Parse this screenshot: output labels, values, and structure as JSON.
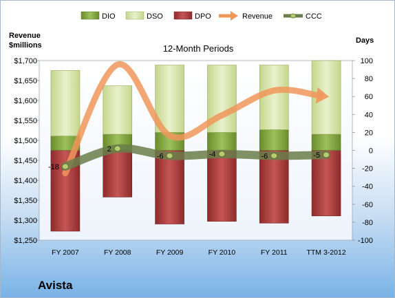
{
  "chart_data": {
    "type": "bar",
    "subtitle": "12-Month Periods",
    "company": "Avista",
    "left_axis": {
      "title_line1": "Revenue",
      "title_line2": "$millions",
      "range": [
        1250,
        1700
      ],
      "ticks": [
        "$1,250",
        "$1,300",
        "$1,350",
        "$1,400",
        "$1,450",
        "$1,500",
        "$1,550",
        "$1,600",
        "$1,650",
        "$1,700"
      ],
      "tick_values": [
        1250,
        1300,
        1350,
        1400,
        1450,
        1500,
        1550,
        1600,
        1650,
        1700
      ]
    },
    "right_axis": {
      "title": "Days",
      "range": [
        -100,
        100
      ],
      "ticks": [
        "100",
        "80",
        "60",
        "40",
        "20",
        "0",
        "-20",
        "-40",
        "-60",
        "-80",
        "-100"
      ],
      "tick_values": [
        100,
        80,
        60,
        40,
        20,
        0,
        -20,
        -40,
        -60,
        -80,
        -100
      ]
    },
    "categories": [
      "FY 2007",
      "FY 2008",
      "FY 2009",
      "FY 2010",
      "FY 2011",
      "TTM 3-2012"
    ],
    "series": [
      {
        "name": "DIO",
        "axis": "right",
        "color": "#7a9c35",
        "values": [
          16,
          18,
          20,
          20,
          23,
          18
        ]
      },
      {
        "name": "DSO",
        "axis": "right",
        "color": "#d7e4a8",
        "values": [
          73,
          54,
          75,
          75,
          72,
          82
        ]
      },
      {
        "name": "DPO",
        "axis": "right",
        "color": "#a33a39",
        "values": [
          -90,
          -52,
          -82,
          -79,
          -81,
          -73
        ]
      },
      {
        "name": "Revenue",
        "axis": "left",
        "color": "#f0975a",
        "values": [
          1418,
          1690,
          1512,
          1563,
          1625,
          1610
        ]
      },
      {
        "name": "CCC",
        "axis": "right",
        "color": "#6a7e4a",
        "values": [
          -18,
          2,
          -6,
          -4,
          -6,
          -5
        ]
      }
    ],
    "ccc_labels": [
      "-18",
      "2",
      "-6",
      "-4",
      "-6",
      "-5"
    ],
    "legend_position": "top",
    "grid": false
  }
}
